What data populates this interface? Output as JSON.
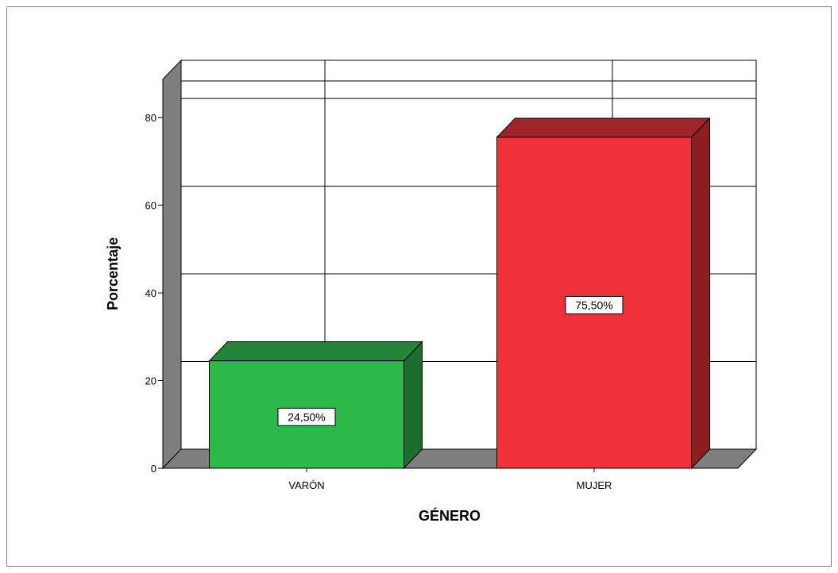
{
  "chart_data": {
    "type": "bar",
    "style": "3d",
    "categories": [
      "VARÓN",
      "MUJER"
    ],
    "values": [
      24.5,
      75.5
    ],
    "data_labels": [
      "24,50%",
      "75,50%"
    ],
    "xlabel": "GÉNERO",
    "ylabel": "Porcentaje",
    "yticks": [
      0,
      20,
      40,
      60,
      80
    ],
    "ylim": [
      0,
      84
    ],
    "grid": true,
    "legend": "none",
    "colors": {
      "bars": [
        "#2fb84a",
        "#ef323a"
      ],
      "bar_sides": [
        "#1d6e2d",
        "#8e1e22"
      ],
      "bar_tops": [
        "#23843a",
        "#9f2328"
      ],
      "floor": "#7f7f7f",
      "wall": "#7f7f7f",
      "grid": "#000000",
      "frame": "#7f7f7f"
    }
  }
}
